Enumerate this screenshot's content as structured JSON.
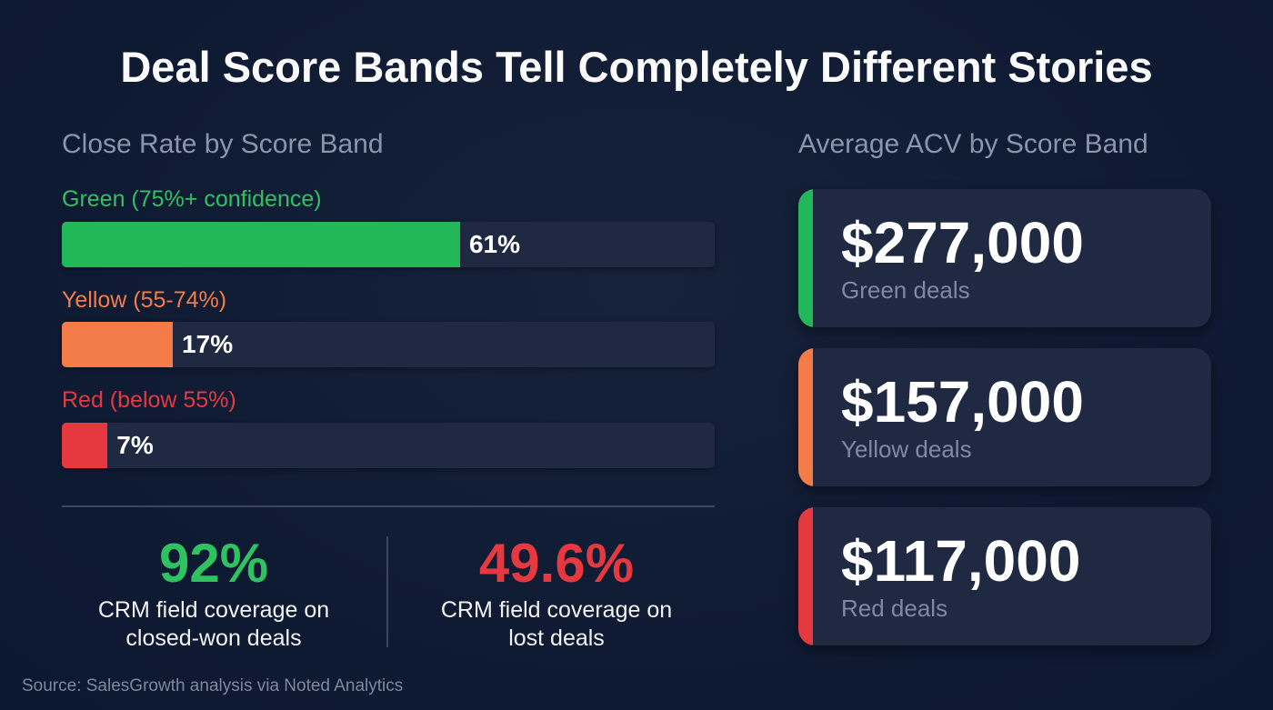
{
  "title": "Deal Score Bands Tell Completely Different Stories",
  "left_section": {
    "title": "Close Rate by Score Band",
    "bars": [
      {
        "label": "Green (75%+ confidence)",
        "value": 61,
        "value_label": "61%",
        "color": "#22b85a",
        "label_color": "#2fc261"
      },
      {
        "label": "Yellow (55-74%)",
        "value": 17,
        "value_label": "17%",
        "color": "#f47c48",
        "label_color": "#f47c48"
      },
      {
        "label": "Red (below 55%)",
        "value": 7,
        "value_label": "7%",
        "color": "#e5393f",
        "label_color": "#e5393f"
      }
    ],
    "stats": [
      {
        "value": "92%",
        "description_line1": "CRM field coverage on",
        "description_line2": "closed-won deals",
        "color": "#2fc261"
      },
      {
        "value": "49.6%",
        "description_line1": "CRM field coverage on",
        "description_line2": "lost deals",
        "color": "#e5393f"
      }
    ]
  },
  "right_section": {
    "title": "Average ACV by Score Band",
    "cards": [
      {
        "value": "$277,000",
        "label": "Green deals",
        "color": "#22b85a"
      },
      {
        "value": "$157,000",
        "label": "Yellow deals",
        "color": "#f47c48"
      },
      {
        "value": "$117,000",
        "label": "Red deals",
        "color": "#e5393f"
      }
    ]
  },
  "source": "Source: SalesGrowth analysis via Noted Analytics",
  "chart_data": [
    {
      "type": "bar",
      "orientation": "horizontal",
      "title": "Close Rate by Score Band",
      "categories": [
        "Green (75%+ confidence)",
        "Yellow (55-74%)",
        "Red (below 55%)"
      ],
      "values": [
        61,
        17,
        7
      ],
      "unit": "%",
      "xlim": [
        0,
        100
      ],
      "grid": false
    },
    {
      "type": "table",
      "title": "Average ACV by Score Band",
      "categories": [
        "Green deals",
        "Yellow deals",
        "Red deals"
      ],
      "values": [
        277000,
        157000,
        117000
      ],
      "unit": "$"
    },
    {
      "type": "table",
      "title": "CRM field coverage",
      "categories": [
        "closed-won deals",
        "lost deals"
      ],
      "values": [
        92,
        49.6
      ],
      "unit": "%"
    }
  ]
}
